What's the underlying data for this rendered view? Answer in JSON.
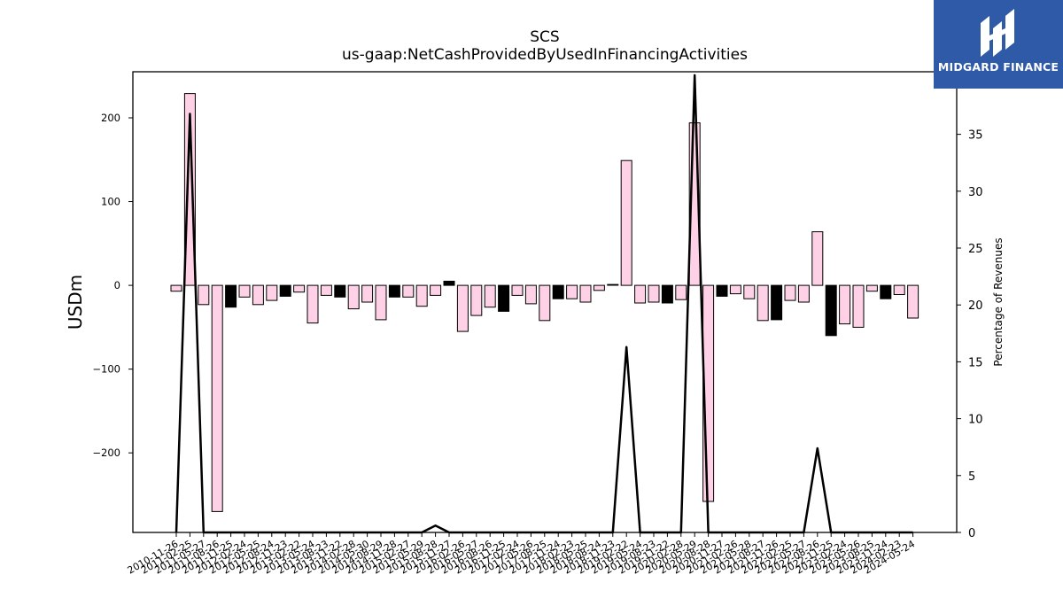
{
  "title": {
    "line1": "SCS",
    "line2": "us-gaap:NetCashProvidedByUsedInFinancingActivities"
  },
  "logo": {
    "text": "MIDGARD FINANCE",
    "bg_color": "#2f5aa8",
    "icon": "midgard-logo-icon"
  },
  "colors": {
    "bar_positive_fill": "#ffd1e6",
    "bar_negative_fill": "#000000",
    "bar_stroke": "#000000",
    "line": "#000000"
  },
  "chart_data": {
    "type": "bar",
    "ylabel": "USDm",
    "y2label": "Percentage of Revenues",
    "ylim": [
      -295,
      255
    ],
    "y2lim": [
      0,
      40.5
    ],
    "yticks": [
      -200,
      -100,
      0,
      100,
      200
    ],
    "y2ticks": [
      0,
      5,
      10,
      15,
      20,
      25,
      30,
      35,
      40
    ],
    "grid": false,
    "x_tick_labels": [
      "2010-11-26",
      "2011-02-25",
      "2011-05-27",
      "2011-08-26",
      "2011-11-25",
      "2012-02-24",
      "2012-05-25",
      "2012-08-24",
      "2012-11-23",
      "2013-02-22",
      "2013-05-24",
      "2013-08-23",
      "2013-11-22",
      "2014-02-28",
      "2014-05-30",
      "2014-08-29",
      "2014-11-28",
      "2015-02-27",
      "2015-05-29",
      "2015-08-28",
      "2015-11-27",
      "2016-02-26",
      "2016-05-27",
      "2016-08-26",
      "2016-11-25",
      "2017-02-24",
      "2017-05-26",
      "2017-08-25",
      "2017-11-24",
      "2018-02-23",
      "2018-05-25",
      "2018-08-24",
      "2018-11-23",
      "2019-02-22",
      "2019-05-24",
      "2019-08-23",
      "2019-11-22",
      "2020-02-28",
      "2020-05-29",
      "2020-08-28",
      "2020-11-27",
      "2021-02-26",
      "2021-05-28",
      "2021-08-27",
      "2021-11-26",
      "2022-02-25",
      "2022-05-27",
      "2022-08-26",
      "2022-11-25",
      "2023-02-24",
      "2023-05-26",
      "2023-08-25",
      "2023-11-24",
      "2024-02-23",
      "2024-05-24"
    ],
    "series": [
      {
        "kind": "bar",
        "values": [
          -7,
          229,
          -23,
          -270,
          -26,
          -14,
          -23,
          -18,
          -13,
          -8,
          -45,
          -12,
          -14,
          -28,
          -20,
          -41,
          -14,
          -14,
          -25,
          -12,
          5,
          -55,
          -36,
          -26,
          -31,
          -12,
          -22,
          -42,
          -16,
          -16,
          -20,
          -6,
          1,
          149,
          -21,
          -20,
          -21,
          -17,
          194,
          -258,
          -13,
          -10,
          -16,
          -42,
          -41,
          -18,
          -20,
          64,
          -60,
          -46,
          -50,
          -7,
          -16,
          -11,
          -39
        ],
        "style": [
          "pos",
          "pos",
          "pos",
          "pos",
          "neg",
          "pos",
          "pos",
          "pos",
          "neg",
          "pos",
          "pos",
          "pos",
          "neg",
          "pos",
          "pos",
          "pos",
          "neg",
          "pos",
          "pos",
          "pos",
          "neg",
          "pos",
          "pos",
          "pos",
          "neg",
          "pos",
          "pos",
          "pos",
          "neg",
          "pos",
          "pos",
          "pos",
          "neg",
          "pos",
          "pos",
          "pos",
          "neg",
          "pos",
          "pos",
          "pos",
          "neg",
          "pos",
          "pos",
          "pos",
          "neg",
          "pos",
          "pos",
          "pos",
          "neg",
          "pos",
          "pos",
          "pos",
          "neg",
          "pos",
          "pos"
        ]
      },
      {
        "kind": "line",
        "axis": "right",
        "values": [
          0,
          36.8,
          0,
          0,
          0,
          0,
          0,
          0,
          0,
          0,
          0,
          0,
          0,
          0,
          0,
          0,
          0,
          0,
          0,
          0.6,
          0,
          0,
          0,
          0,
          0,
          0,
          0,
          0,
          0,
          0,
          0,
          0,
          0,
          16.3,
          0,
          0,
          0,
          0,
          40.2,
          0,
          0,
          0,
          0,
          0,
          0,
          0,
          0,
          7.4,
          0,
          0,
          0,
          0,
          0,
          0,
          0
        ]
      }
    ]
  }
}
